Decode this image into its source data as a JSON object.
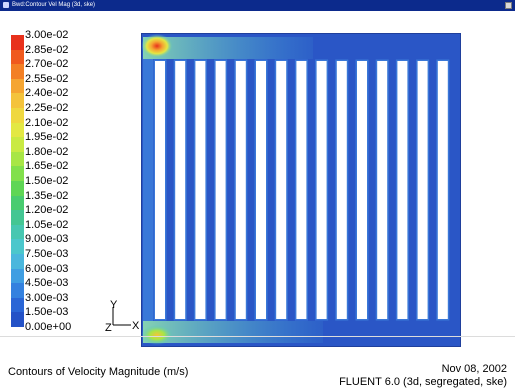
{
  "window": {
    "title": "Bwd:Contour Vel Mag (3d, ske)",
    "bg_color": "#0c2a8c"
  },
  "legend": {
    "labels": [
      "3.00e-02",
      "2.85e-02",
      "2.70e-02",
      "2.55e-02",
      "2.40e-02",
      "2.25e-02",
      "2.10e-02",
      "1.95e-02",
      "1.80e-02",
      "1.65e-02",
      "1.50e-02",
      "1.35e-02",
      "1.20e-02",
      "1.05e-02",
      "9.00e-03",
      "7.50e-03",
      "6.00e-03",
      "4.50e-03",
      "3.00e-03",
      "1.50e-03",
      "0.00e+00"
    ],
    "colors": [
      "#e8311c",
      "#f05a1e",
      "#f38025",
      "#f5a532",
      "#f4c33c",
      "#efd840",
      "#e3e844",
      "#c9ea43",
      "#a8e646",
      "#82e04c",
      "#5fd655",
      "#49cc70",
      "#44c693",
      "#47c7b1",
      "#4bc7cc",
      "#4ab7dd",
      "#3f9ee2",
      "#3481df",
      "#2a66d6",
      "#2452c7"
    ]
  },
  "axes": {
    "y_label": "Y",
    "z_label": "Z",
    "x_label": "X"
  },
  "plot": {
    "field_color": "#2a56c6",
    "slot_color": "#ffffff",
    "slot_count": 15,
    "hotspot_color": "#e8311c"
  },
  "footer": {
    "caption": "Contours of Velocity Magnitude (m/s)",
    "date": "Nov 08, 2002",
    "solver": "FLUENT 6.0 (3d, segregated, ske)"
  }
}
